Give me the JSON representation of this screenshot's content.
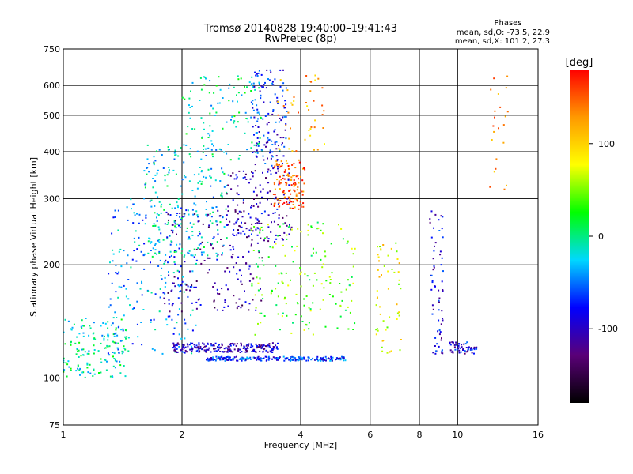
{
  "chart_data": {
    "type": "scatter",
    "title": "Tromsø 20140828 19:40:00–19:41:43",
    "subtitle": "RwPretec (8p)",
    "phases_box": {
      "heading": "Phases",
      "line_o": "mean, sd,O: -73.5, 22.9",
      "line_x": "mean, sd,X: 101.2, 27.3"
    },
    "xlabel": "Frequency [MHz]",
    "ylabel": "Stationary phase Virtual Height [km]",
    "x_scale": "log",
    "y_scale": "log",
    "xlim": [
      1,
      16
    ],
    "ylim": [
      75,
      750
    ],
    "x_ticks": [
      1,
      2,
      4,
      6,
      8,
      10,
      16
    ],
    "x_tick_labels": [
      "1",
      "2",
      "4",
      "6",
      "8",
      "10",
      "16"
    ],
    "y_ticks": [
      75,
      100,
      200,
      300,
      400,
      500,
      600,
      750
    ],
    "y_tick_labels": [
      "75",
      "100",
      "200",
      "300",
      "400",
      "500",
      "600",
      "750"
    ],
    "grid": true,
    "colorbar": {
      "label": "[deg]",
      "range": [
        -180,
        180
      ],
      "ticks": [
        100,
        0,
        -100
      ],
      "tick_labels": [
        "100",
        "0",
        "-100"
      ],
      "colors": [
        "#000000",
        "#5a0078",
        "#0000ff",
        "#00d8ff",
        "#00ff00",
        "#ffff00",
        "#ff9900",
        "#ff0000"
      ]
    },
    "clusters": [
      {
        "x": [
          1.0,
          1.45
        ],
        "y": [
          100,
          145
        ],
        "phase": -10,
        "n": 160
      },
      {
        "x": [
          1.3,
          2.2
        ],
        "y": [
          115,
          300
        ],
        "phase": -40,
        "n": 220
      },
      {
        "x": [
          1.6,
          2.6
        ],
        "y": [
          210,
          420
        ],
        "phase": -20,
        "n": 220
      },
      {
        "x": [
          1.8,
          3.2
        ],
        "y": [
          150,
          280
        ],
        "phase": -110,
        "n": 180
      },
      {
        "x": [
          2.0,
          3.2
        ],
        "y": [
          380,
          640
        ],
        "phase": -10,
        "n": 110
      },
      {
        "x": [
          2.6,
          3.8
        ],
        "y": [
          230,
          360
        ],
        "phase": -100,
        "n": 140
      },
      {
        "x": [
          3.0,
          3.7
        ],
        "y": [
          360,
          660
        ],
        "phase": -80,
        "n": 140
      },
      {
        "x": [
          3.4,
          4.1
        ],
        "y": [
          280,
          380
        ],
        "phase": 150,
        "n": 120
      },
      {
        "x": [
          3.5,
          4.6
        ],
        "y": [
          400,
          640
        ],
        "phase": 120,
        "n": 45
      },
      {
        "x": [
          1.9,
          3.5
        ],
        "y": [
          117,
          124
        ],
        "phase": -100,
        "n": 220
      },
      {
        "x": [
          2.3,
          5.2
        ],
        "y": [
          111,
          114
        ],
        "phase": -70,
        "n": 220
      },
      {
        "x": [
          3.0,
          5.5
        ],
        "y": [
          130,
          260
        ],
        "phase": 40,
        "n": 170
      },
      {
        "x": [
          6.2,
          7.2
        ],
        "y": [
          115,
          230
        ],
        "phase": 80,
        "n": 55
      },
      {
        "x": [
          8.5,
          9.2
        ],
        "y": [
          115,
          280
        ],
        "phase": -90,
        "n": 65
      },
      {
        "x": [
          9.5,
          11.2
        ],
        "y": [
          116,
          125
        ],
        "phase": -90,
        "n": 55
      },
      {
        "x": [
          12.0,
          13.5
        ],
        "y": [
          300,
          650
        ],
        "phase": 130,
        "n": 22
      }
    ]
  }
}
